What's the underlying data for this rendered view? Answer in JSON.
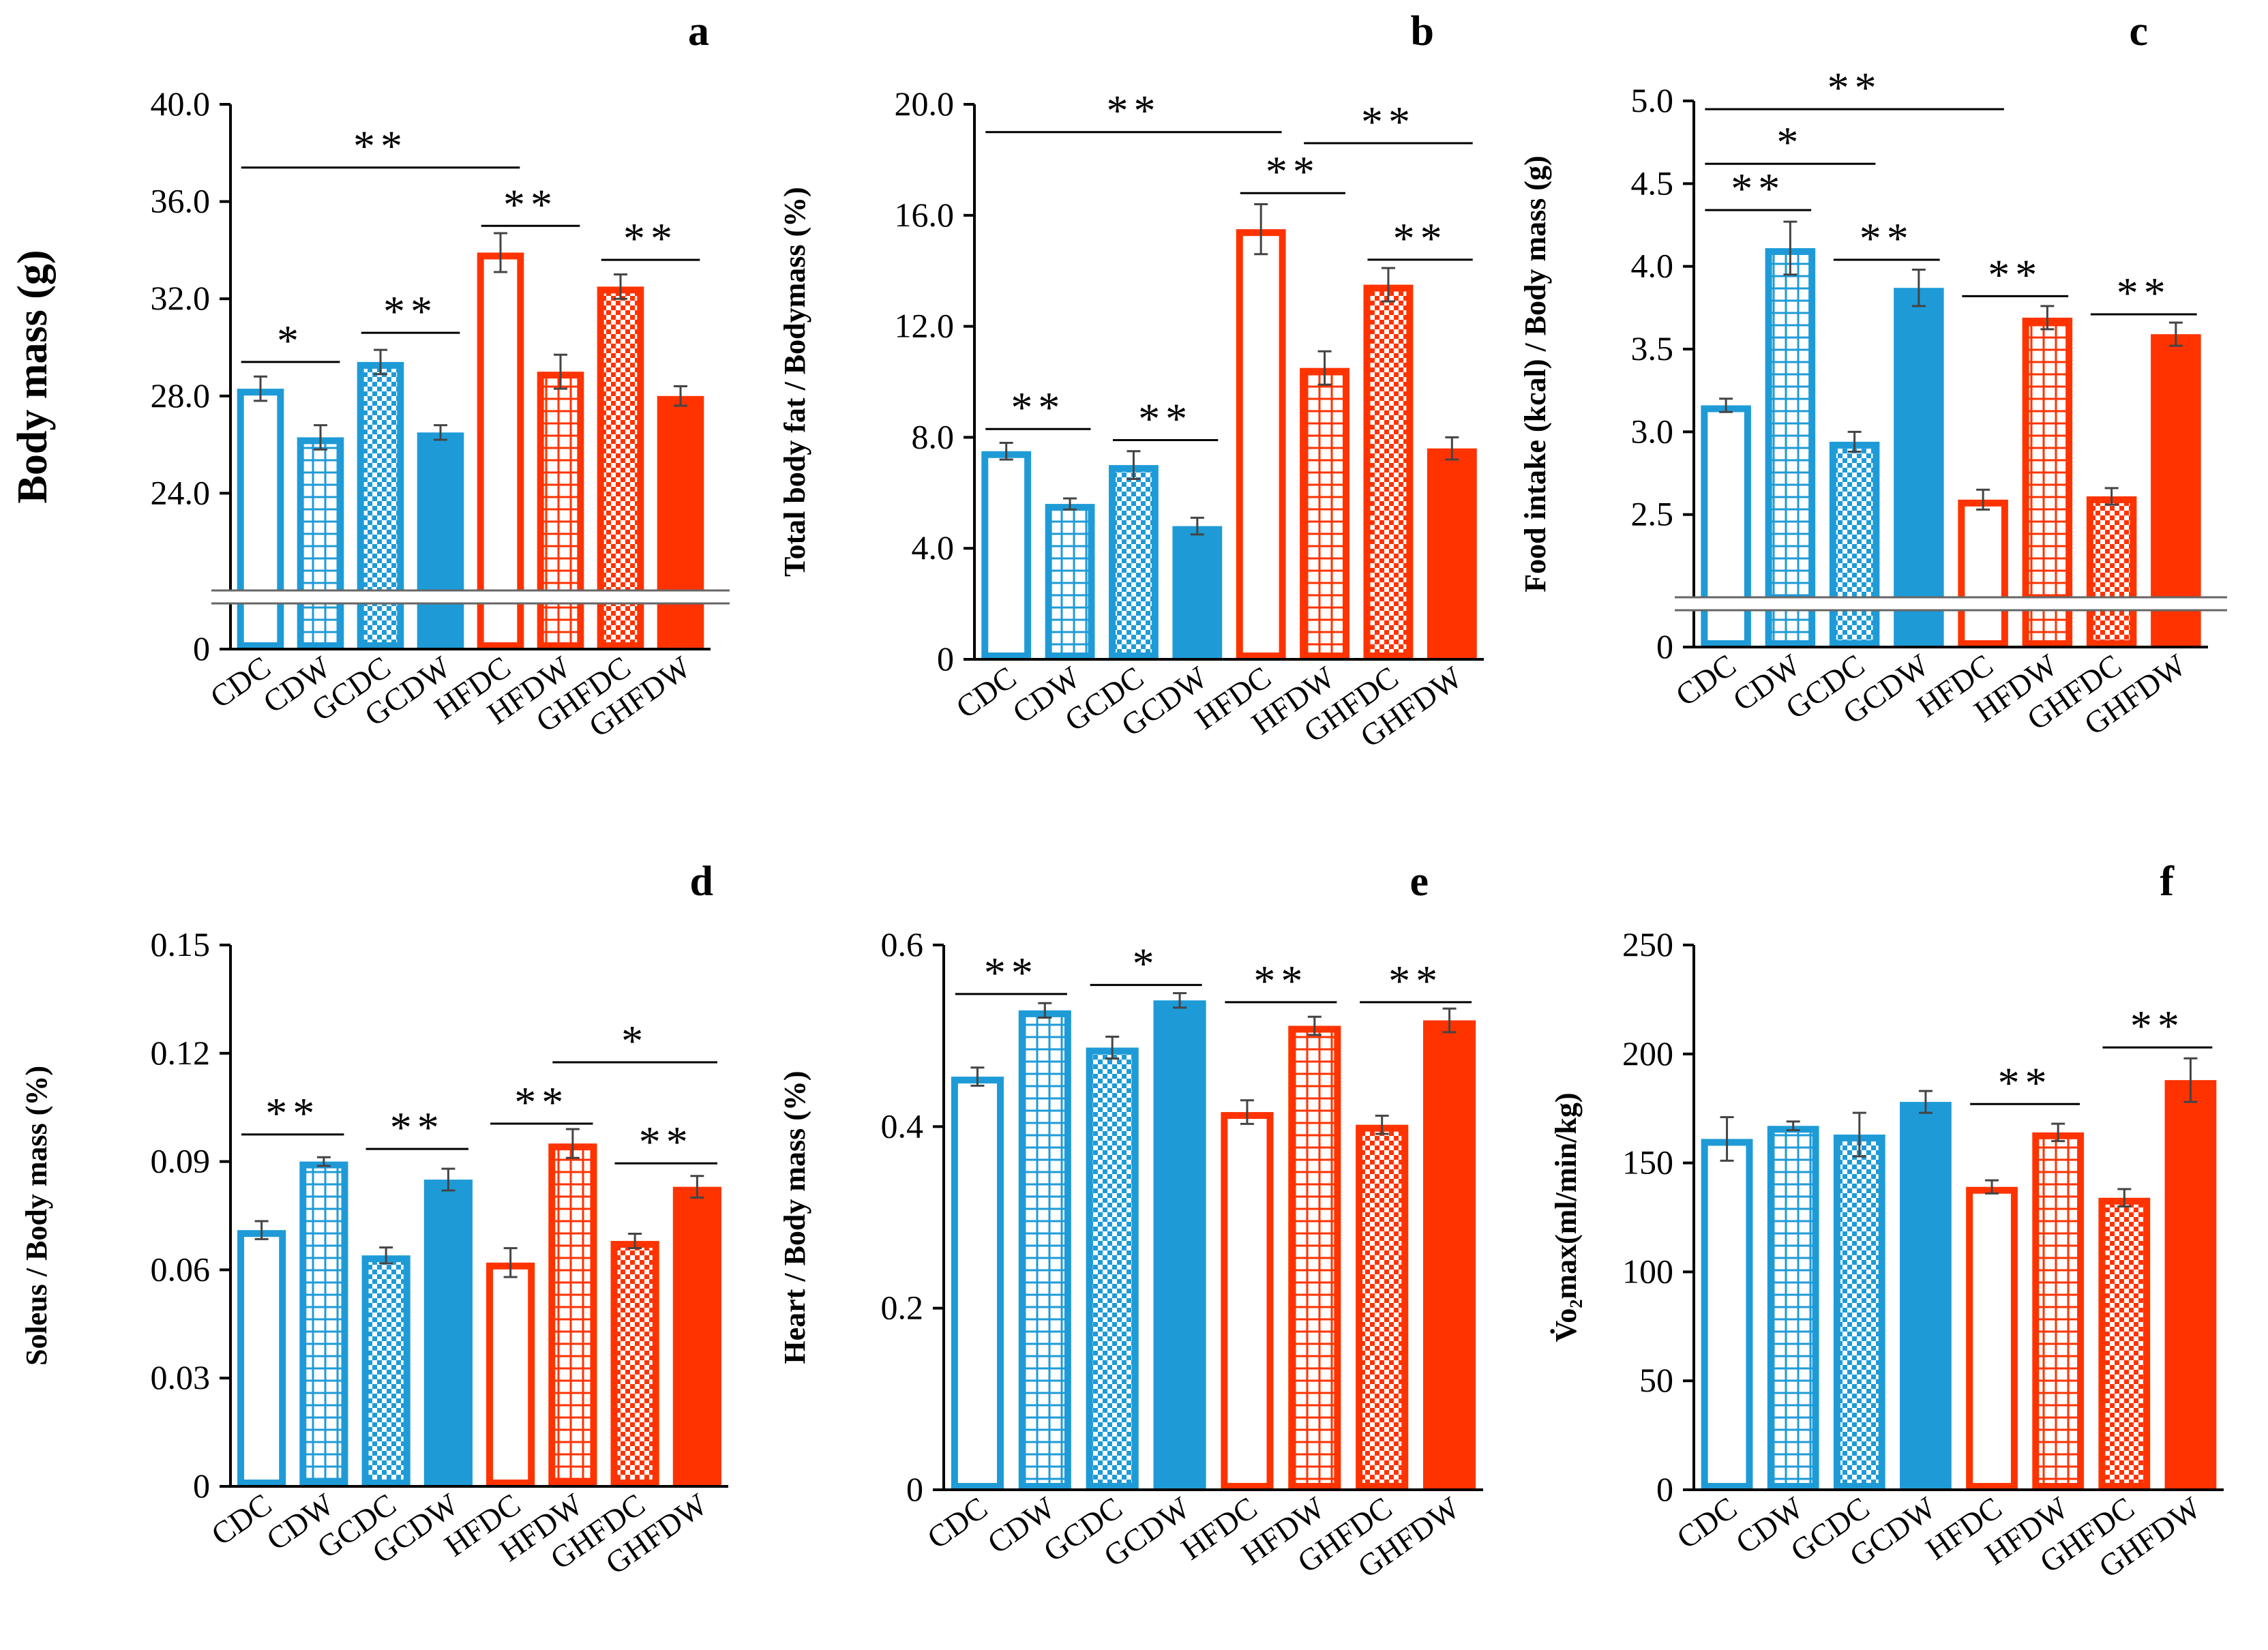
{
  "figure": {
    "palette": {
      "blue": "#1e9bd7",
      "red": "#ff3300",
      "axis": "#000000",
      "error": "#444444"
    },
    "categories": [
      "CDC",
      "CDW",
      "GCDC",
      "GCDW",
      "HFDC",
      "HFDW",
      "GHFDC",
      "GHFDW"
    ],
    "bar_styles": [
      "outline",
      "grid",
      "checker",
      "solid",
      "outline",
      "grid",
      "checker",
      "solid"
    ]
  },
  "chart_data": [
    {
      "panel": "a",
      "type": "bar",
      "ylabel": "Body mass (g)",
      "yticks": [
        "40.0",
        "36.0",
        "32.0",
        "28.0",
        "24.0",
        "0"
      ],
      "ylim": [
        20,
        40
      ],
      "axis_break": true,
      "categories": [
        "CDC",
        "CDW",
        "GCDC",
        "GCDW",
        "HFDC",
        "HFDW",
        "GHFDC",
        "GHFDW"
      ],
      "values": [
        28.3,
        26.3,
        29.4,
        26.5,
        33.9,
        29.0,
        32.5,
        28.0
      ],
      "errors": [
        0.5,
        0.5,
        0.5,
        0.3,
        0.8,
        0.7,
        0.5,
        0.4
      ],
      "significance": [
        {
          "label": "**",
          "from": 0,
          "to": 4,
          "y": 37.4
        },
        {
          "label": "*",
          "from": 0,
          "to": 1,
          "y": 29.4
        },
        {
          "label": "**",
          "from": 2,
          "to": 3,
          "y": 30.6
        },
        {
          "label": "**",
          "from": 4,
          "to": 5,
          "y": 35.0
        },
        {
          "label": "**",
          "from": 6,
          "to": 7,
          "y": 33.6
        }
      ]
    },
    {
      "panel": "b",
      "type": "bar",
      "ylabel": "Total body fat / Bodymass (%)",
      "yticks": [
        "20.0",
        "16.0",
        "12.0",
        "8.0",
        "4.0",
        "0"
      ],
      "ylim": [
        0,
        20
      ],
      "axis_break": false,
      "categories": [
        "CDC",
        "CDW",
        "GCDC",
        "GCDW",
        "HFDC",
        "HFDW",
        "GHFDC",
        "GHFDW"
      ],
      "values": [
        7.5,
        5.6,
        7.0,
        4.8,
        15.5,
        10.5,
        13.5,
        7.6
      ],
      "errors": [
        0.3,
        0.2,
        0.5,
        0.3,
        0.9,
        0.6,
        0.6,
        0.4
      ],
      "significance": [
        {
          "label": "**",
          "from": 0,
          "to": 4,
          "y": 19.0
        },
        {
          "label": "**",
          "from": 5,
          "to": 7,
          "y": 18.6
        },
        {
          "label": "**",
          "from": 4,
          "to": 5,
          "y": 16.8
        },
        {
          "label": "**",
          "from": 6,
          "to": 7,
          "y": 14.4
        },
        {
          "label": "**",
          "from": 0,
          "to": 1,
          "y": 8.3
        },
        {
          "label": "**",
          "from": 2,
          "to": 3,
          "y": 7.9
        }
      ]
    },
    {
      "panel": "c",
      "type": "bar",
      "ylabel": "Food intake (kcal) / Body mass (g)",
      "yticks": [
        "5.0",
        "4.5",
        "4.0",
        "3.5",
        "3.0",
        "2.5",
        "0"
      ],
      "ylim": [
        2.0,
        5.0
      ],
      "axis_break": true,
      "categories": [
        "CDC",
        "CDW",
        "GCDC",
        "GCDW",
        "HFDC",
        "HFDW",
        "GHFDC",
        "GHFDW"
      ],
      "values": [
        3.16,
        4.11,
        2.94,
        3.87,
        2.59,
        3.69,
        2.61,
        3.59
      ],
      "errors": [
        0.04,
        0.16,
        0.06,
        0.11,
        0.06,
        0.07,
        0.05,
        0.07
      ],
      "significance": [
        {
          "label": "**",
          "from": 0,
          "to": 4,
          "y": 4.95
        },
        {
          "label": "*",
          "from": 0,
          "to": 2,
          "y": 4.62
        },
        {
          "label": "**",
          "from": 0,
          "to": 1,
          "y": 4.34
        },
        {
          "label": "**",
          "from": 2,
          "to": 3,
          "y": 4.04
        },
        {
          "label": "**",
          "from": 4,
          "to": 5,
          "y": 3.82
        },
        {
          "label": "**",
          "from": 6,
          "to": 7,
          "y": 3.71
        }
      ]
    },
    {
      "panel": "d",
      "type": "bar",
      "ylabel": "Soleus / Body mass (%)",
      "yticks": [
        "0.15",
        "0.12",
        "0.09",
        "0.06",
        "0.03",
        "0"
      ],
      "ylim": [
        0,
        0.15
      ],
      "axis_break": false,
      "categories": [
        "CDC",
        "CDW",
        "GCDC",
        "GCDW",
        "HFDC",
        "HFDW",
        "GHFDC",
        "GHFDW"
      ],
      "values": [
        0.071,
        0.09,
        0.064,
        0.085,
        0.062,
        0.095,
        0.068,
        0.083
      ],
      "errors": [
        0.0025,
        0.0012,
        0.0022,
        0.003,
        0.004,
        0.004,
        0.002,
        0.003
      ],
      "significance": [
        {
          "label": "*",
          "from": 5,
          "to": 7,
          "y": 0.1175
        },
        {
          "label": "**",
          "from": 0,
          "to": 1,
          "y": 0.0975
        },
        {
          "label": "**",
          "from": 2,
          "to": 3,
          "y": 0.0935
        },
        {
          "label": "**",
          "from": 4,
          "to": 5,
          "y": 0.1005
        },
        {
          "label": "**",
          "from": 6,
          "to": 7,
          "y": 0.0895
        }
      ]
    },
    {
      "panel": "e",
      "type": "bar",
      "ylabel": "Heart / Body mass (%)",
      "yticks": [
        "0.6",
        "0.4",
        "0.2",
        "0"
      ],
      "ylim": [
        0,
        0.6
      ],
      "axis_break": false,
      "categories": [
        "CDC",
        "CDW",
        "GCDC",
        "GCDW",
        "HFDC",
        "HFDW",
        "GHFDC",
        "GHFDW"
      ],
      "values": [
        0.455,
        0.528,
        0.487,
        0.539,
        0.416,
        0.511,
        0.402,
        0.517
      ],
      "errors": [
        0.01,
        0.008,
        0.012,
        0.008,
        0.013,
        0.01,
        0.01,
        0.013
      ],
      "significance": [
        {
          "label": "**",
          "from": 0,
          "to": 1,
          "y": 0.546
        },
        {
          "label": "*",
          "from": 2,
          "to": 3,
          "y": 0.556
        },
        {
          "label": "**",
          "from": 4,
          "to": 5,
          "y": 0.537
        },
        {
          "label": "**",
          "from": 6,
          "to": 7,
          "y": 0.537
        }
      ]
    },
    {
      "panel": "f",
      "type": "bar",
      "ylabel": "V̇o₂max(ml/min/kg)",
      "yticks": [
        "250",
        "200",
        "150",
        "100",
        "50",
        "0"
      ],
      "ylim": [
        0,
        250
      ],
      "axis_break": false,
      "categories": [
        "CDC",
        "CDW",
        "GCDC",
        "GCDW",
        "HFDC",
        "HFDW",
        "GHFDC",
        "GHFDW"
      ],
      "values": [
        161,
        167,
        163,
        178,
        139,
        164,
        134,
        188
      ],
      "errors": [
        10,
        2,
        10,
        5,
        3,
        4,
        4,
        10
      ],
      "significance": [
        {
          "label": "**",
          "from": 4,
          "to": 5,
          "y": 177
        },
        {
          "label": "**",
          "from": 6,
          "to": 7,
          "y": 203
        }
      ]
    }
  ]
}
